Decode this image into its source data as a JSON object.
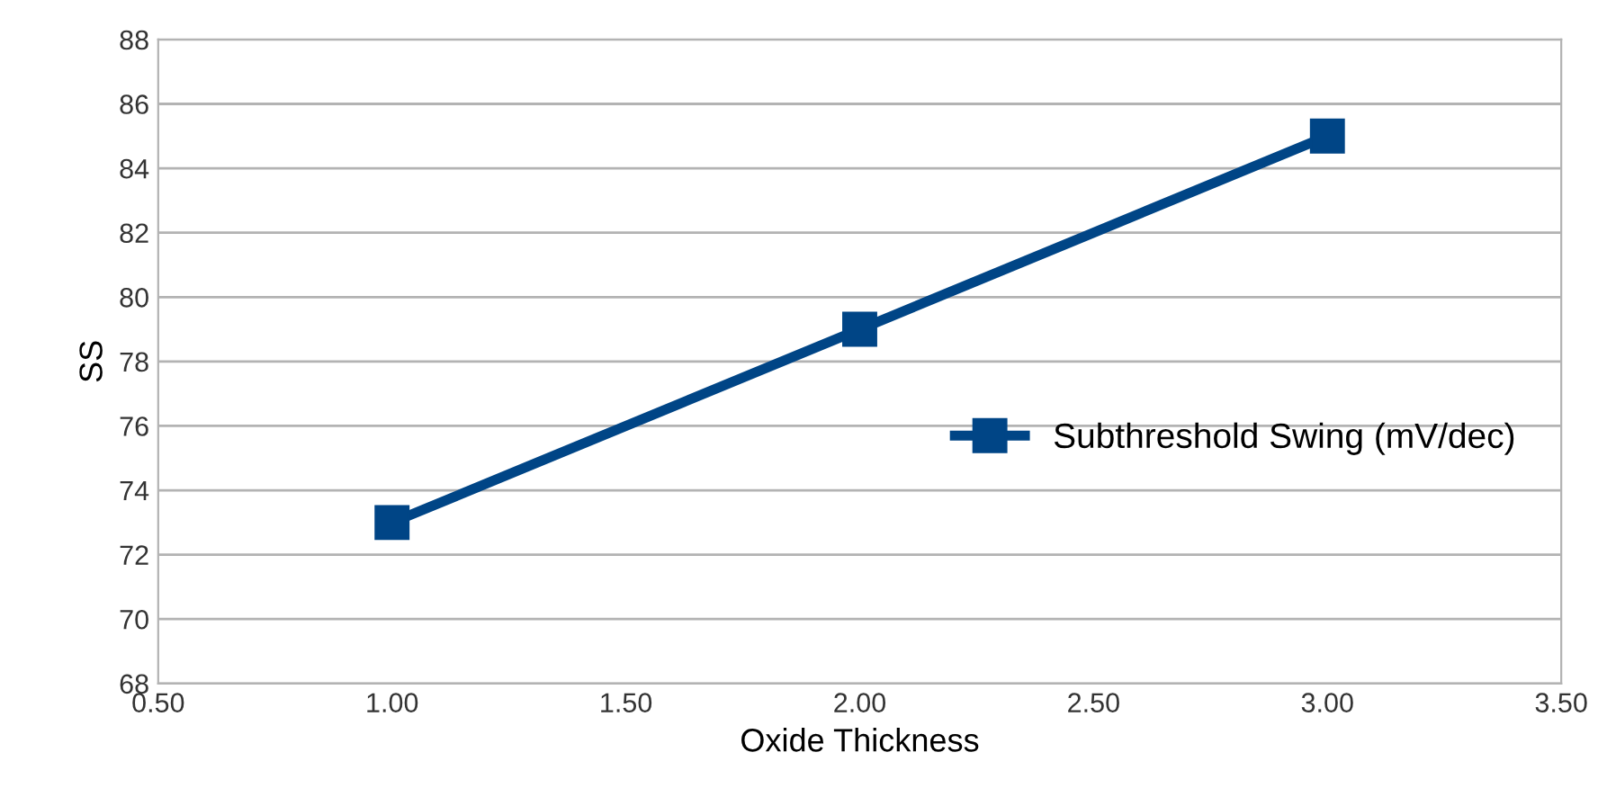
{
  "chart_data": {
    "type": "line",
    "xlabel": "Oxide Thickness",
    "ylabel": "SS",
    "x": [
      1.0,
      2.0,
      3.0
    ],
    "series": [
      {
        "name": "Subthreshold Swing (mV/dec)",
        "color": "#004586",
        "values": [
          73,
          79,
          85
        ]
      }
    ],
    "xlim": [
      0.5,
      3.5
    ],
    "xticks": [
      {
        "value": 0.5,
        "label": "0.50"
      },
      {
        "value": 1.0,
        "label": "1.00"
      },
      {
        "value": 1.5,
        "label": "1.50"
      },
      {
        "value": 2.0,
        "label": "2.00"
      },
      {
        "value": 2.5,
        "label": "2.50"
      },
      {
        "value": 3.0,
        "label": "3.00"
      },
      {
        "value": 3.5,
        "label": "3.50"
      }
    ],
    "ylim": [
      68,
      88
    ],
    "yticks": [
      68,
      70,
      72,
      74,
      76,
      78,
      80,
      82,
      84,
      86,
      88
    ],
    "grid": "y",
    "legend": "right",
    "marker": "square",
    "line_style": "solid"
  }
}
